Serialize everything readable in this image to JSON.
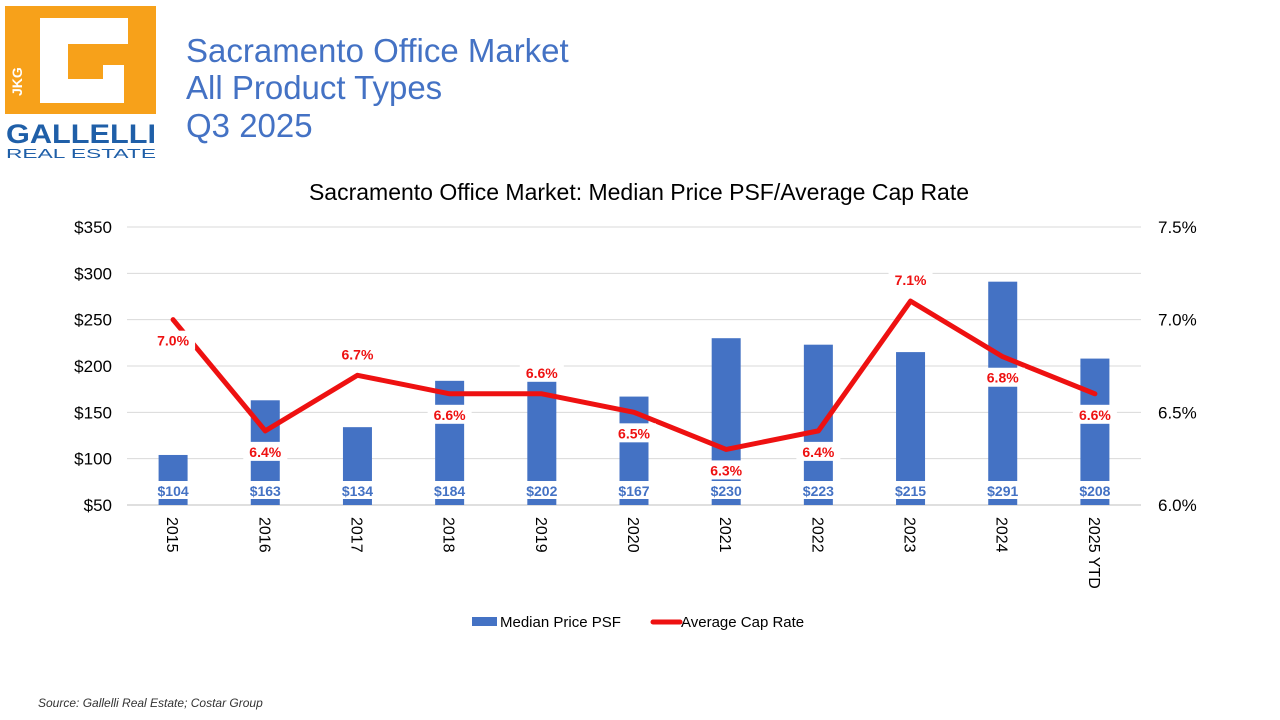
{
  "logo": {
    "initials": "JKG",
    "brand": "GALLELLI",
    "sub": "REAL ESTATE",
    "colors": {
      "orange": "#f7a11a",
      "blue": "#1f5fa8"
    }
  },
  "header": {
    "line1": "Sacramento Office Market",
    "line2": "All Product Types",
    "line3": "Q3 2025"
  },
  "chart_data": {
    "type": "bar+line",
    "title": "Sacramento Office Market: Median Price PSF/Average Cap Rate",
    "categories": [
      "2015",
      "2016",
      "2017",
      "2018",
      "2019",
      "2020",
      "2021",
      "2022",
      "2023",
      "2024",
      "2025 YTD"
    ],
    "series": [
      {
        "name": "Median Price PSF",
        "type": "bar",
        "axis": "left",
        "color": "#4472c4",
        "values": [
          104,
          163,
          134,
          184,
          202,
          167,
          230,
          223,
          215,
          291,
          208
        ],
        "labels": [
          "$104",
          "$163",
          "$134",
          "$184",
          "$202",
          "$167",
          "$230",
          "$223",
          "$215",
          "$291",
          "$208"
        ]
      },
      {
        "name": "Average Cap Rate",
        "type": "line",
        "axis": "right",
        "color": "#ee1111",
        "values": [
          7.0,
          6.4,
          6.7,
          6.6,
          6.6,
          6.5,
          6.3,
          6.4,
          7.1,
          6.8,
          6.6
        ],
        "labels": [
          "7.0%",
          "6.4%",
          "6.7%",
          "6.6%",
          "6.6%",
          "6.5%",
          "6.3%",
          "6.4%",
          "7.1%",
          "6.8%",
          "6.6%"
        ]
      }
    ],
    "y_left": {
      "min": 50,
      "max": 350,
      "ticks": [
        "$50",
        "$100",
        "$150",
        "$200",
        "$250",
        "$300",
        "$350"
      ]
    },
    "y_right": {
      "min": 6.0,
      "max": 7.5,
      "ticks": [
        "6.0%",
        "6.5%",
        "7.0%",
        "7.5%"
      ]
    },
    "grid": true,
    "legend": {
      "position": "bottom",
      "items": [
        "Median Price PSF",
        "Average Cap Rate"
      ]
    }
  },
  "source": "Source: Gallelli Real Estate; Costar Group"
}
